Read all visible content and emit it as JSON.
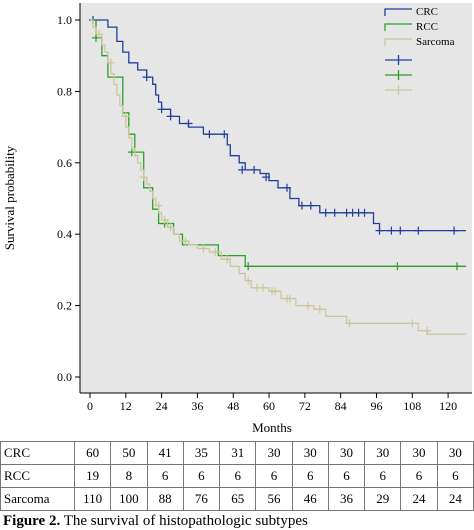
{
  "chart_data": {
    "type": "line",
    "xlabel": "Months",
    "ylabel": "Survival probability",
    "xlim": [
      0,
      126
    ],
    "ylim": [
      0,
      1.0
    ],
    "x_ticks": [
      "0",
      "12",
      "24",
      "36",
      "48",
      "60",
      "72",
      "84",
      "96",
      "108",
      "120"
    ],
    "y_ticks": [
      "0.0",
      "0.2",
      "0.4",
      "0.6",
      "0.8",
      "1.0"
    ],
    "grid": false,
    "background": "#e6e6e6",
    "legend": {
      "placement": "top-right",
      "entries": [
        "CRC",
        "RCC",
        "Sarcoma"
      ]
    },
    "series": [
      {
        "name": "CRC",
        "color": "#1f3f99",
        "steps": [
          [
            0,
            1.0
          ],
          [
            6,
            0.98
          ],
          [
            9,
            0.94
          ],
          [
            11,
            0.91
          ],
          [
            13,
            0.88
          ],
          [
            16,
            0.86
          ],
          [
            19,
            0.84
          ],
          [
            21,
            0.82
          ],
          [
            22,
            0.79
          ],
          [
            23,
            0.77
          ],
          [
            24,
            0.75
          ],
          [
            27,
            0.73
          ],
          [
            30,
            0.71
          ],
          [
            33,
            0.7
          ],
          [
            38,
            0.68
          ],
          [
            46,
            0.65
          ],
          [
            47,
            0.62
          ],
          [
            50,
            0.6
          ],
          [
            52,
            0.58
          ],
          [
            57,
            0.57
          ],
          [
            60,
            0.55
          ],
          [
            63,
            0.53
          ],
          [
            67,
            0.5
          ],
          [
            70,
            0.48
          ],
          [
            77,
            0.46
          ],
          [
            95,
            0.43
          ],
          [
            97,
            0.41
          ],
          [
            126,
            0.41
          ]
        ],
        "censored": [
          [
            1,
            1.0
          ],
          [
            19,
            0.84
          ],
          [
            24,
            0.75
          ],
          [
            27,
            0.73
          ],
          [
            33,
            0.71
          ],
          [
            40,
            0.68
          ],
          [
            45,
            0.68
          ],
          [
            51,
            0.58
          ],
          [
            55,
            0.58
          ],
          [
            59,
            0.56
          ],
          [
            66,
            0.53
          ],
          [
            71,
            0.48
          ],
          [
            74,
            0.48
          ],
          [
            79,
            0.46
          ],
          [
            82,
            0.46
          ],
          [
            86,
            0.46
          ],
          [
            88,
            0.46
          ],
          [
            90,
            0.46
          ],
          [
            92,
            0.46
          ],
          [
            97,
            0.41
          ],
          [
            101,
            0.41
          ],
          [
            104,
            0.41
          ],
          [
            110,
            0.41
          ],
          [
            122,
            0.41
          ]
        ]
      },
      {
        "name": "RCC",
        "color": "#2aa02a",
        "steps": [
          [
            0,
            1.0
          ],
          [
            2,
            0.95
          ],
          [
            4,
            0.9
          ],
          [
            6,
            0.84
          ],
          [
            11,
            0.74
          ],
          [
            13,
            0.68
          ],
          [
            15,
            0.63
          ],
          [
            18,
            0.53
          ],
          [
            21,
            0.47
          ],
          [
            23,
            0.43
          ],
          [
            28,
            0.4
          ],
          [
            31,
            0.37
          ],
          [
            42,
            0.37
          ],
          [
            43,
            0.34
          ],
          [
            52,
            0.31
          ],
          [
            126,
            0.31
          ]
        ],
        "censored": [
          [
            2,
            0.95
          ],
          [
            14,
            0.63
          ],
          [
            25,
            0.43
          ],
          [
            53,
            0.31
          ],
          [
            103,
            0.31
          ],
          [
            123,
            0.31
          ]
        ]
      },
      {
        "name": "Sarcoma",
        "color": "#ccc79a",
        "steps": [
          [
            0,
            1.0
          ],
          [
            1,
            0.98
          ],
          [
            2,
            0.96
          ],
          [
            4,
            0.93
          ],
          [
            5,
            0.91
          ],
          [
            6,
            0.88
          ],
          [
            7,
            0.85
          ],
          [
            8,
            0.82
          ],
          [
            9,
            0.79
          ],
          [
            10,
            0.76
          ],
          [
            11,
            0.73
          ],
          [
            12,
            0.7
          ],
          [
            13,
            0.67
          ],
          [
            14,
            0.64
          ],
          [
            15,
            0.62
          ],
          [
            16,
            0.6
          ],
          [
            17,
            0.58
          ],
          [
            18,
            0.56
          ],
          [
            19,
            0.54
          ],
          [
            20,
            0.52
          ],
          [
            21,
            0.5
          ],
          [
            22,
            0.48
          ],
          [
            23,
            0.46
          ],
          [
            24,
            0.44
          ],
          [
            26,
            0.42
          ],
          [
            28,
            0.4
          ],
          [
            30,
            0.38
          ],
          [
            33,
            0.37
          ],
          [
            36,
            0.36
          ],
          [
            40,
            0.35
          ],
          [
            44,
            0.33
          ],
          [
            47,
            0.31
          ],
          [
            50,
            0.29
          ],
          [
            52,
            0.27
          ],
          [
            54,
            0.25
          ],
          [
            60,
            0.24
          ],
          [
            64,
            0.22
          ],
          [
            69,
            0.2
          ],
          [
            75,
            0.19
          ],
          [
            79,
            0.17
          ],
          [
            86,
            0.15
          ],
          [
            110,
            0.13
          ],
          [
            113,
            0.12
          ],
          [
            126,
            0.12
          ]
        ],
        "censored": [
          [
            3,
            0.96
          ],
          [
            7,
            0.88
          ],
          [
            12,
            0.73
          ],
          [
            18,
            0.56
          ],
          [
            23,
            0.48
          ],
          [
            25,
            0.44
          ],
          [
            27,
            0.42
          ],
          [
            32,
            0.38
          ],
          [
            38,
            0.36
          ],
          [
            42,
            0.35
          ],
          [
            46,
            0.33
          ],
          [
            53,
            0.27
          ],
          [
            56,
            0.25
          ],
          [
            58,
            0.25
          ],
          [
            61,
            0.24
          ],
          [
            62,
            0.24
          ],
          [
            66,
            0.22
          ],
          [
            67,
            0.22
          ],
          [
            73,
            0.2
          ],
          [
            77,
            0.19
          ],
          [
            87,
            0.15
          ],
          [
            108,
            0.15
          ],
          [
            113,
            0.13
          ]
        ]
      }
    ]
  },
  "risk_table": {
    "rows": [
      {
        "label": "CRC",
        "values": [
          "60",
          "50",
          "41",
          "35",
          "31",
          "30",
          "30",
          "30",
          "30",
          "30",
          "30"
        ]
      },
      {
        "label": "RCC",
        "values": [
          "19",
          "8",
          "6",
          "6",
          "6",
          "6",
          "6",
          "6",
          "6",
          "6",
          "6"
        ]
      },
      {
        "label": "Sarcoma",
        "values": [
          "110",
          "100",
          "88",
          "76",
          "65",
          "56",
          "46",
          "36",
          "29",
          "24",
          "24"
        ]
      }
    ]
  },
  "caption": {
    "prefix": "Figure 2.",
    "text": " The survival of histopathologic subtypes"
  }
}
